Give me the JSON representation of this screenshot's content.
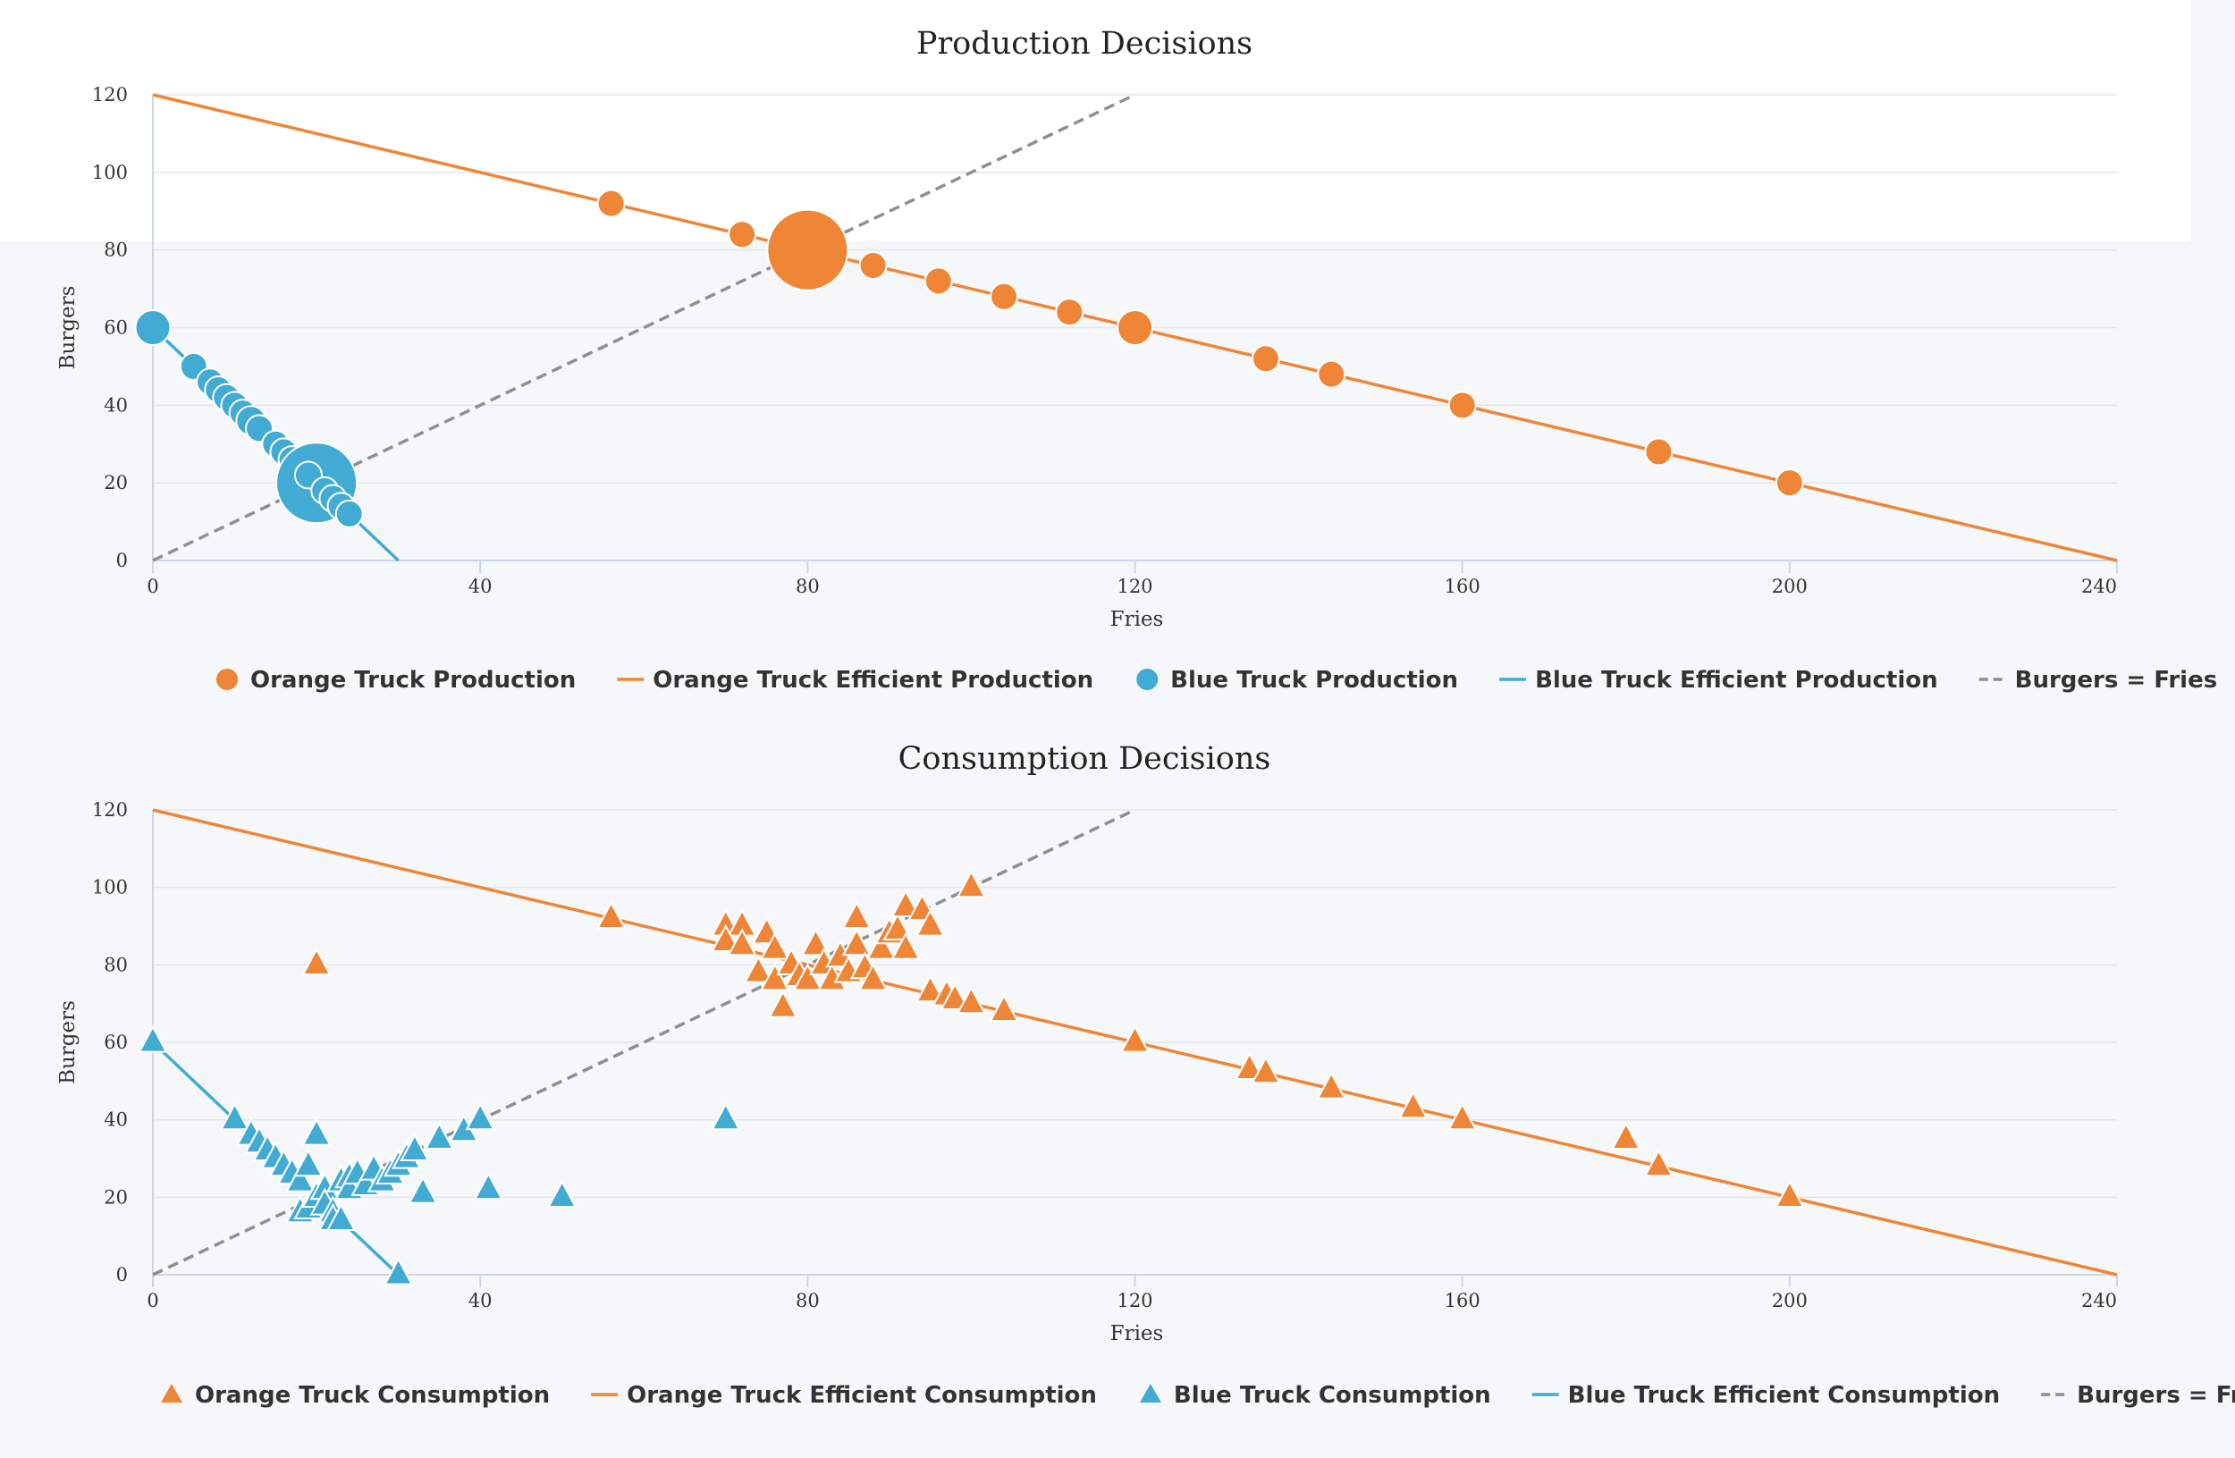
{
  "colors": {
    "orange": "#ef8637",
    "blue": "#41abd4",
    "gray": "#8f8f8f",
    "grid": "#e2e5ea",
    "axis": "#ccd6eb"
  },
  "chart_data": [
    {
      "type": "scatter",
      "title": "Production Decisions",
      "xlabel": "Fries",
      "ylabel": "Burgers",
      "xlim": [
        0,
        240
      ],
      "ylim": [
        0,
        120
      ],
      "x_ticks": [
        "0",
        "40",
        "80",
        "120",
        "160",
        "200",
        "240"
      ],
      "y_ticks": [
        "0",
        "20",
        "40",
        "60",
        "80",
        "100",
        "120"
      ],
      "grid": true,
      "legend_position": "bottom",
      "marker": "circle",
      "series": [
        {
          "name": "Orange Truck Production",
          "kind": "scatter",
          "color": "orange",
          "points": [
            [
              56,
              92
            ],
            [
              72,
              84
            ],
            [
              80,
              80
            ],
            [
              88,
              76
            ],
            [
              96,
              72
            ],
            [
              104,
              68
            ],
            [
              112,
              64
            ],
            [
              120,
              60
            ],
            [
              136,
              52
            ],
            [
              144,
              48
            ],
            [
              160,
              40
            ],
            [
              184,
              28
            ],
            [
              200,
              20
            ]
          ],
          "sizes": [
            1,
            1,
            3,
            1,
            1,
            1,
            1,
            1.3,
            1,
            1,
            1,
            1,
            1
          ]
        },
        {
          "name": "Orange Truck Efficient Production",
          "kind": "line",
          "color": "orange",
          "points": [
            [
              0,
              120
            ],
            [
              240,
              0
            ]
          ]
        },
        {
          "name": "Blue Truck Production",
          "kind": "scatter",
          "color": "blue",
          "points": [
            [
              0,
              60
            ],
            [
              5,
              50
            ],
            [
              7,
              46
            ],
            [
              8,
              44
            ],
            [
              9,
              42
            ],
            [
              10,
              40
            ],
            [
              11,
              38
            ],
            [
              12,
              36
            ],
            [
              13,
              34
            ],
            [
              15,
              30
            ],
            [
              16,
              28
            ],
            [
              17,
              26
            ],
            [
              18,
              24
            ],
            [
              20,
              20
            ],
            [
              19,
              22
            ],
            [
              21,
              18
            ],
            [
              22,
              16
            ],
            [
              23,
              14
            ],
            [
              24,
              12
            ]
          ],
          "sizes": [
            1.3,
            1,
            1,
            1,
            1,
            1,
            1,
            1.1,
            1,
            1,
            1,
            1,
            1,
            3,
            1,
            1,
            1,
            1,
            1
          ]
        },
        {
          "name": "Blue Truck Efficient Production",
          "kind": "line",
          "color": "blue",
          "points": [
            [
              0,
              60
            ],
            [
              30,
              0
            ]
          ]
        },
        {
          "name": "Burgers = Fries",
          "kind": "dashed",
          "color": "gray",
          "points": [
            [
              0,
              0
            ],
            [
              120,
              120
            ]
          ]
        }
      ]
    },
    {
      "type": "scatter",
      "title": "Consumption Decisions",
      "xlabel": "Fries",
      "ylabel": "Burgers",
      "xlim": [
        0,
        240
      ],
      "ylim": [
        0,
        120
      ],
      "x_ticks": [
        "0",
        "40",
        "80",
        "120",
        "160",
        "200",
        "240"
      ],
      "y_ticks": [
        "0",
        "20",
        "40",
        "60",
        "80",
        "100",
        "120"
      ],
      "grid": true,
      "legend_position": "bottom",
      "marker": "triangle",
      "series": [
        {
          "name": "Orange Truck Consumption",
          "kind": "scatter",
          "color": "orange",
          "points": [
            [
              20,
              80
            ],
            [
              56,
              92
            ],
            [
              70,
              90
            ],
            [
              72,
              90
            ],
            [
              70,
              86
            ],
            [
              72,
              85
            ],
            [
              75,
              88
            ],
            [
              76,
              84
            ],
            [
              74,
              78
            ],
            [
              76,
              76
            ],
            [
              77,
              69
            ],
            [
              78,
              80
            ],
            [
              79,
              77
            ],
            [
              80,
              76
            ],
            [
              81,
              85
            ],
            [
              82,
              80
            ],
            [
              83,
              76
            ],
            [
              84,
              82
            ],
            [
              85,
              78
            ],
            [
              86,
              85
            ],
            [
              87,
              79
            ],
            [
              86,
              92
            ],
            [
              88,
              76
            ],
            [
              89,
              84
            ],
            [
              90,
              88
            ],
            [
              91,
              89
            ],
            [
              92,
              84
            ],
            [
              92,
              95
            ],
            [
              94,
              94
            ],
            [
              95,
              90
            ],
            [
              95,
              73
            ],
            [
              97,
              72
            ],
            [
              98,
              71
            ],
            [
              100,
              70
            ],
            [
              100,
              100
            ],
            [
              104,
              68
            ],
            [
              120,
              60
            ],
            [
              134,
              53
            ],
            [
              136,
              52
            ],
            [
              144,
              48
            ],
            [
              154,
              43
            ],
            [
              160,
              40
            ],
            [
              180,
              35
            ],
            [
              184,
              28
            ],
            [
              200,
              20
            ]
          ]
        },
        {
          "name": "Orange Truck Efficient Consumption",
          "kind": "line",
          "color": "orange",
          "points": [
            [
              0,
              120
            ],
            [
              240,
              0
            ]
          ]
        },
        {
          "name": "Blue Truck Consumption",
          "kind": "scatter",
          "color": "blue",
          "points": [
            [
              0,
              60
            ],
            [
              10,
              40
            ],
            [
              12,
              36
            ],
            [
              13,
              34
            ],
            [
              14,
              32
            ],
            [
              15,
              30
            ],
            [
              16,
              28
            ],
            [
              17,
              26
            ],
            [
              18,
              24
            ],
            [
              18,
              16
            ],
            [
              19,
              17
            ],
            [
              19,
              28
            ],
            [
              20,
              20
            ],
            [
              20,
              36
            ],
            [
              21,
              22
            ],
            [
              21,
              18
            ],
            [
              22,
              16
            ],
            [
              22,
              14
            ],
            [
              23,
              24
            ],
            [
              23,
              14
            ],
            [
              24,
              25
            ],
            [
              24,
              22
            ],
            [
              25,
              26
            ],
            [
              26,
              23
            ],
            [
              27,
              27
            ],
            [
              28,
              24
            ],
            [
              29,
              26
            ],
            [
              30,
              28
            ],
            [
              30,
              0
            ],
            [
              31,
              30
            ],
            [
              32,
              32
            ],
            [
              33,
              21
            ],
            [
              35,
              35
            ],
            [
              38,
              37
            ],
            [
              40,
              40
            ],
            [
              41,
              22
            ],
            [
              50,
              20
            ],
            [
              70,
              40
            ]
          ]
        },
        {
          "name": "Blue Truck Efficient Consumption",
          "kind": "line",
          "color": "blue",
          "points": [
            [
              0,
              60
            ],
            [
              30,
              0
            ]
          ]
        },
        {
          "name": "Burgers = Fries",
          "kind": "dashed",
          "color": "gray",
          "points": [
            [
              0,
              0
            ],
            [
              120,
              120
            ]
          ]
        }
      ]
    }
  ]
}
